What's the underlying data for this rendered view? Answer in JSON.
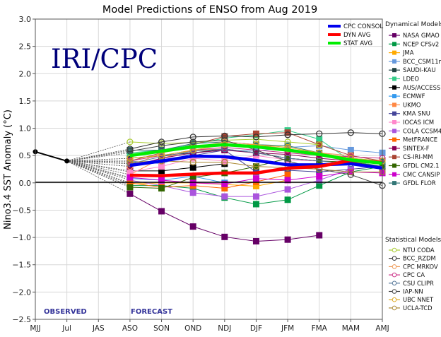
{
  "chart_data": {
    "type": "line",
    "title": "Model Predictions of ENSO from Aug 2019",
    "xlabel": "",
    "ylabel": "Nino3.4 SST Anomaly (°C)",
    "ylim": [
      -2.5,
      3.0
    ],
    "yticks": [
      "3.0",
      "2.5",
      "2.0",
      "1.5",
      "1.0",
      "0.5",
      "0.0",
      "−0.5",
      "−1.0",
      "−1.5",
      "−2.0",
      "−2.5"
    ],
    "ytick_values": [
      3.0,
      2.5,
      2.0,
      1.5,
      1.0,
      0.5,
      0.0,
      -0.5,
      -1.0,
      -1.5,
      -2.0,
      -2.5
    ],
    "categories": [
      "MJJ",
      "Jul",
      "JAS",
      "ASO",
      "SON",
      "OND",
      "NDJ",
      "DJF",
      "JFM",
      "FMA",
      "MAM",
      "AMJ"
    ],
    "grid": true,
    "watermark": "IRI/CPC",
    "phase_labels": {
      "observed": "OBSERVED",
      "forecast": "FORECAST"
    },
    "observed": {
      "name": "Observed",
      "color": "#000000",
      "x": [
        "MJJ",
        "Jul"
      ],
      "values": [
        0.57,
        0.4
      ]
    },
    "forecast_x": [
      "ASO",
      "SON",
      "OND",
      "NDJ",
      "DJF",
      "JFM",
      "FMA",
      "MAM",
      "AMJ"
    ],
    "averages": [
      {
        "name": "CPC CONSOL",
        "color": "#0000ee",
        "values": [
          0.32,
          0.4,
          0.49,
          0.48,
          0.41,
          0.33,
          0.33,
          0.35,
          0.27
        ]
      },
      {
        "name": "DYN AVG",
        "color": "#ff0000",
        "values": [
          0.14,
          0.13,
          0.16,
          0.18,
          0.18,
          0.27,
          0.3,
          0.41,
          0.37
        ]
      },
      {
        "name": "STAT AVG",
        "color": "#00ee00",
        "values": [
          0.5,
          0.58,
          0.66,
          0.7,
          0.66,
          0.6,
          0.52,
          0.42,
          0.36
        ]
      }
    ],
    "legend": {
      "placement": "right",
      "dynamical_header": "Dynamical Models",
      "statistical_header": "Statistical Models"
    },
    "dynamical_series": [
      {
        "name": "NASA GMAO",
        "color": "#660066",
        "values": [
          -0.2,
          -0.52,
          -0.8,
          -0.99,
          -1.07,
          -1.04,
          -0.96,
          null,
          null
        ]
      },
      {
        "name": "NCEP CFSv2",
        "color": "#009944",
        "values": [
          -0.05,
          -0.05,
          -0.1,
          -0.27,
          -0.39,
          -0.31,
          -0.05,
          0.2,
          0.3
        ]
      },
      {
        "name": "JMA",
        "color": "#ffaa00",
        "values": [
          -0.02,
          0.0,
          0.0,
          -0.03,
          -0.06,
          0.05,
          null,
          null,
          null
        ]
      },
      {
        "name": "BCC_CSM11m",
        "color": "#6699dd",
        "values": [
          0.4,
          0.35,
          0.55,
          0.6,
          0.58,
          0.65,
          0.68,
          0.6,
          0.55
        ]
      },
      {
        "name": "SAUDI-KAU",
        "color": "#224444",
        "values": [
          0.45,
          0.5,
          0.55,
          0.62,
          0.55,
          0.45,
          0.4,
          null,
          null
        ]
      },
      {
        "name": "LDEO",
        "color": "#33cc88",
        "values": [
          0.55,
          0.6,
          0.7,
          0.82,
          0.88,
          0.96,
          0.8,
          0.4,
          0.3
        ]
      },
      {
        "name": "AUS/ACCESS",
        "color": "#000000",
        "values": [
          0.22,
          0.22,
          0.28,
          0.35,
          null,
          null,
          null,
          null,
          null
        ]
      },
      {
        "name": "ECMWF",
        "color": "#3399ee",
        "values": [
          0.08,
          0.05,
          0.12,
          0.0,
          null,
          null,
          null,
          null,
          null
        ]
      },
      {
        "name": "UKMO",
        "color": "#ff8844",
        "values": [
          0.15,
          0.45,
          0.6,
          0.62,
          null,
          null,
          null,
          null,
          null
        ]
      },
      {
        "name": "KMA SNU",
        "color": "#444499",
        "values": [
          0.35,
          0.4,
          0.5,
          0.6,
          0.2,
          0.23,
          0.2,
          0.25,
          0.3
        ]
      },
      {
        "name": "IOCAS ICM",
        "color": "#ff88cc",
        "values": [
          0.2,
          0.3,
          0.45,
          0.4,
          0.5,
          0.42,
          0.4,
          0.38,
          0.35
        ]
      },
      {
        "name": "COLA CCSM4",
        "color": "#aa55dd",
        "values": [
          0.05,
          -0.05,
          -0.18,
          -0.25,
          -0.25,
          -0.12,
          0.05,
          0.25,
          null
        ]
      },
      {
        "name": "MetFRANCE",
        "color": "#ff6600",
        "values": [
          0.0,
          -0.08,
          -0.05,
          -0.1,
          0.02,
          0.15,
          null,
          null,
          null
        ]
      },
      {
        "name": "SINTEX-F",
        "color": "#880055",
        "values": [
          0.3,
          0.45,
          0.55,
          0.6,
          0.55,
          0.52,
          0.45,
          0.4,
          0.35
        ]
      },
      {
        "name": "CS-IRI-MM",
        "color": "#aa4433",
        "values": [
          0.4,
          0.55,
          0.7,
          0.85,
          0.9,
          0.92,
          0.7,
          0.5,
          0.4
        ]
      },
      {
        "name": "GFDL CM2.1",
        "color": "#336600",
        "values": [
          -0.08,
          -0.1,
          0.1,
          0.18,
          0.3,
          0.45,
          0.4,
          0.38,
          0.3
        ]
      },
      {
        "name": "CMC CANSIP",
        "color": "#cc00cc",
        "values": [
          0.1,
          0.05,
          0.0,
          -0.02,
          0.08,
          0.05,
          0.12,
          0.2,
          0.18
        ]
      },
      {
        "name": "GFDL FLOR",
        "color": "#337777",
        "values": [
          0.6,
          0.6,
          0.72,
          0.75,
          0.7,
          0.68,
          0.55,
          0.45,
          0.4
        ]
      }
    ],
    "statistical_series": [
      {
        "name": "NTU CODA",
        "color": "#aacc33",
        "values": [
          0.75,
          0.72,
          0.74,
          0.78,
          0.8,
          0.75,
          0.7,
          null,
          null
        ]
      },
      {
        "name": "BCC_RZDM",
        "color": "#333333",
        "values": [
          0.62,
          0.75,
          0.84,
          0.86,
          0.84,
          0.88,
          0.9,
          0.92,
          0.9
        ]
      },
      {
        "name": "CPC MRKOV",
        "color": "#ee9955",
        "values": [
          0.3,
          0.55,
          0.65,
          0.75,
          0.7,
          0.62,
          0.55,
          0.5,
          null
        ]
      },
      {
        "name": "CPC CA",
        "color": "#cc3388",
        "values": [
          0.4,
          0.5,
          0.6,
          0.65,
          0.6,
          0.55,
          0.5,
          0.48,
          0.45
        ]
      },
      {
        "name": "CSU CLIPR",
        "color": "#557799",
        "values": [
          0.35,
          0.48,
          0.58,
          0.62,
          0.55,
          0.45,
          0.4,
          0.35,
          0.3
        ]
      },
      {
        "name": "IAP-NN",
        "color": "#444444",
        "values": [
          0.58,
          0.68,
          0.75,
          0.78,
          0.6,
          0.4,
          0.25,
          0.15,
          -0.05
        ]
      },
      {
        "name": "UBC NNET",
        "color": "#ddaa22",
        "values": [
          0.45,
          0.5,
          0.6,
          0.7,
          0.7,
          0.65,
          0.55,
          0.45,
          0.4
        ]
      },
      {
        "name": "UCLA-TCD",
        "color": "#aa8833",
        "values": [
          0.38,
          0.4,
          0.38,
          0.38,
          0.3,
          0.28,
          0.25,
          0.2,
          0.2
        ]
      }
    ]
  }
}
